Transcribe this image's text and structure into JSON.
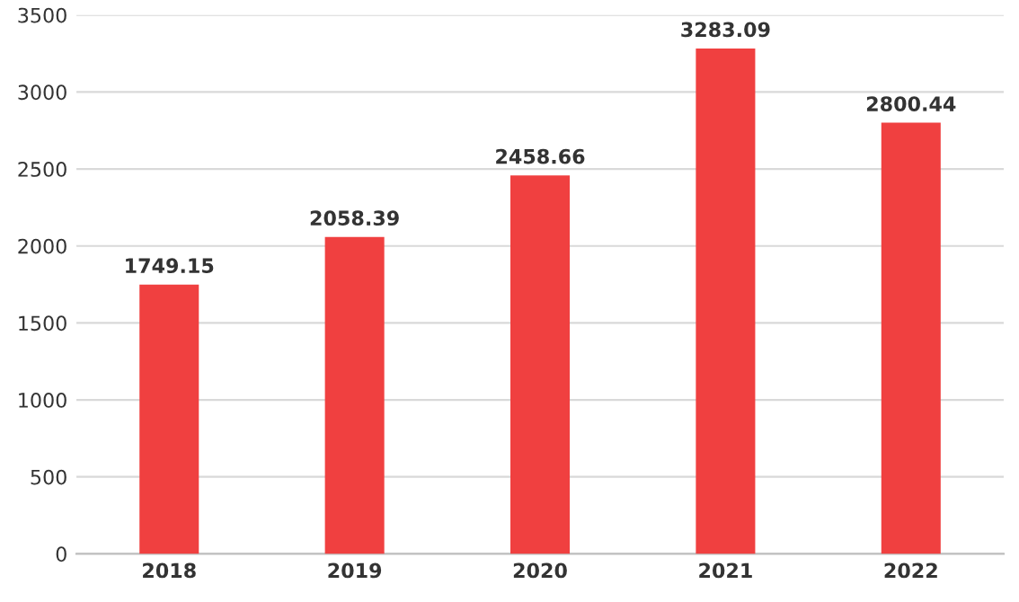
{
  "chart_data": {
    "type": "bar",
    "categories": [
      "2018",
      "2019",
      "2020",
      "2021",
      "2022"
    ],
    "values": [
      1749.15,
      2058.39,
      2458.66,
      3283.09,
      2800.44
    ],
    "color": "#f04040",
    "ylim": [
      0,
      3500
    ],
    "yticks": [
      0,
      500,
      1000,
      1500,
      2000,
      2500,
      3000,
      3500
    ],
    "grid": "y",
    "data_labels": true
  }
}
